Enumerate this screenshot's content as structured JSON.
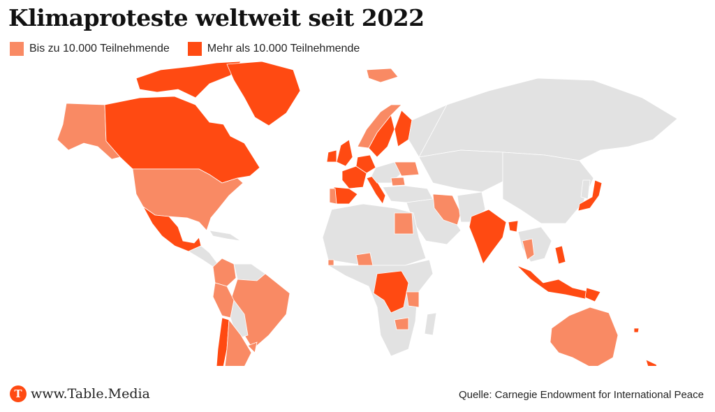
{
  "title": "Klimaproteste weltweit seit 2022",
  "legend": [
    {
      "label": "Bis zu 10.000 Teilnehmende",
      "color": "#f98a64"
    },
    {
      "label": "Mehr als 10.000 Teilnehmende",
      "color": "#ff4a12"
    }
  ],
  "colors": {
    "land_default": "#e2e2e2",
    "small": "#f98a64",
    "large": "#ff4a12"
  },
  "footer": {
    "logo_letter": "T",
    "site": "www.Table.Media",
    "source": "Quelle: Carnegie Endowment for International Peace"
  },
  "map_data": {
    "small": [
      "Alaska",
      "USA",
      "Kolumbien",
      "Brasilien",
      "Peru",
      "Argentinien",
      "Portugal",
      "Island",
      "Norwegen",
      "Ukraine",
      "Rumänien",
      "Ägypten",
      "Iran",
      "Nigeria",
      "Tansania",
      "Simbabwe",
      "Sierra Leone",
      "Thailand",
      "Australien",
      "Uruguay"
    ],
    "large": [
      "Kanada",
      "Grönland",
      "Mexiko",
      "Chile",
      "Vereinigtes Königreich",
      "Irland",
      "Frankreich",
      "Spanien",
      "Deutschland",
      "Schweden",
      "Finnland",
      "Italien",
      "DR Kongo",
      "Indien",
      "Bangladesch",
      "Indonesien",
      "Philippinen",
      "Japan",
      "Neuseeland",
      "Papua-Neuguinea",
      "Fidschi"
    ]
  }
}
